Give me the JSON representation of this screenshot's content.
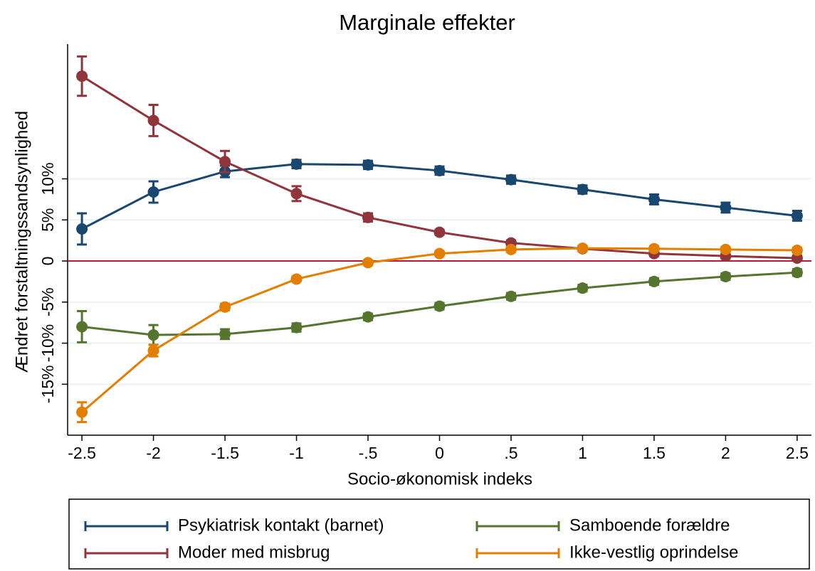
{
  "chart_data": {
    "type": "line",
    "title": "Marginale effekter",
    "x_label": "Socio-økonomisk indeks",
    "y_label": "Ændret forstaltningssandsynlighed",
    "x": [
      -2.5,
      -2,
      -1.5,
      -1,
      -0.5,
      0,
      0.5,
      1,
      1.5,
      2,
      2.5
    ],
    "xlim": [
      -2.6,
      2.6
    ],
    "xticks": [
      -2.5,
      -2,
      -1.5,
      -1,
      {
        "value": -0.5,
        "label": "-.5"
      },
      0,
      {
        "value": 0.5,
        "label": ".5"
      },
      1,
      1.5,
      2,
      2.5
    ],
    "ylim": [
      -21.2,
      26.4
    ],
    "yticks": [
      {
        "value": -15,
        "label": "-15%"
      },
      {
        "value": -10,
        "label": "-10%"
      },
      {
        "value": -5,
        "label": "-5%"
      },
      0,
      {
        "value": 5,
        "label": "5%"
      },
      {
        "value": 10,
        "label": "10%"
      }
    ],
    "grid": true,
    "yline": 0,
    "yline_color": "#c0143c",
    "series": [
      {
        "name": "Psykiatrisk kontakt (barnet)",
        "color": "#1a476f",
        "values": [
          3.9,
          8.4,
          10.9,
          11.8,
          11.7,
          11.0,
          9.9,
          8.7,
          7.5,
          6.5,
          5.5
        ],
        "errors": [
          1.9,
          1.3,
          0.7,
          0.5,
          0.5,
          0.5,
          0.5,
          0.5,
          0.6,
          0.6,
          0.6
        ]
      },
      {
        "name": "Moder med misbrug",
        "color": "#90353b",
        "values": [
          22.5,
          17.1,
          12.1,
          8.2,
          5.3,
          3.5,
          2.2,
          1.5,
          0.9,
          0.6,
          0.35
        ],
        "errors": [
          2.4,
          1.9,
          1.3,
          0.9,
          0.5,
          0.3,
          0.3,
          0.3,
          0.3,
          0.3,
          0.3
        ]
      },
      {
        "name": "Samboende forældre",
        "color": "#55752f",
        "values": [
          -8.0,
          -9.0,
          -8.9,
          -8.1,
          -6.8,
          -5.5,
          -4.3,
          -3.3,
          -2.5,
          -1.9,
          -1.4
        ],
        "errors": [
          1.9,
          1.2,
          0.6,
          0.5,
          0.4,
          0.4,
          0.4,
          0.4,
          0.4,
          0.4,
          0.4
        ]
      },
      {
        "name": "Ikke-vestlig oprindelse",
        "color": "#e37e00",
        "values": [
          -18.4,
          -10.9,
          -5.6,
          -2.2,
          -0.2,
          0.9,
          1.4,
          1.55,
          1.5,
          1.4,
          1.3
        ],
        "errors": [
          1.2,
          0.7,
          0.4,
          0.3,
          0.3,
          0.3,
          0.3,
          0.3,
          0.3,
          0.3,
          0.3
        ]
      }
    ]
  }
}
